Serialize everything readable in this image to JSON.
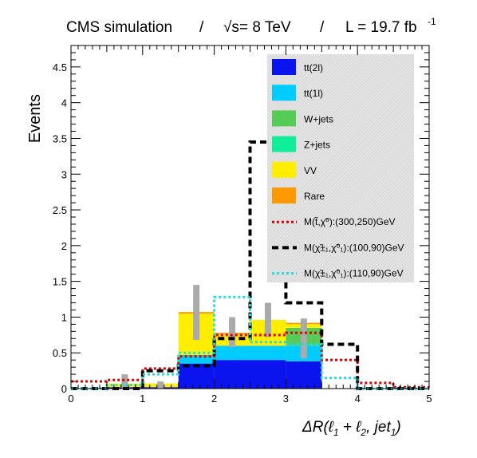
{
  "header": {
    "experiment": "CMS simulation",
    "sep1": "/",
    "energy_sqrt": "√s",
    "energy_rest": " = 8 TeV",
    "sep2": "/",
    "lumi": "L = 19.7 fb",
    "lumi_exp": "-1"
  },
  "chart_data": {
    "type": "histogram",
    "ylabel": "Events",
    "xlabel_parts": {
      "delta": "ΔR(ℓ",
      "sub1": "1",
      "plus": " + ℓ",
      "sub2": "2",
      "comma": ", jet",
      "sub3": "1",
      "close": ")"
    },
    "xlim": [
      0,
      5
    ],
    "ylim": [
      0,
      4.8
    ],
    "x_ticks": [
      0,
      1,
      2,
      3,
      4,
      5
    ],
    "x_tick_labels": [
      "0",
      "1",
      "2",
      "3",
      "4",
      "5"
    ],
    "y_ticks": [
      0,
      0.5,
      1,
      1.5,
      2,
      2.5,
      3,
      3.5,
      4,
      4.5
    ],
    "y_tick_labels": [
      "0",
      "0.5",
      "1",
      "1.5",
      "2",
      "2.5",
      "3",
      "3.5",
      "4",
      "4.5"
    ],
    "bin_edges": [
      0,
      0.5,
      1,
      1.5,
      2,
      2.5,
      3,
      3.5,
      4,
      4.5,
      5
    ],
    "stacked_series": [
      {
        "name": "tt(2l)",
        "color": "#0a14ee",
        "values": [
          0,
          0.02,
          0.02,
          0.35,
          0.4,
          0.4,
          0.38,
          0,
          0,
          0
        ]
      },
      {
        "name": "tt(1l)",
        "color": "#00ccff",
        "values": [
          0,
          0,
          0,
          0.12,
          0.2,
          0.2,
          0.22,
          0,
          0,
          0
        ]
      },
      {
        "name": "W+jets",
        "color": "#55cc55",
        "values": [
          0,
          0,
          0,
          0,
          0,
          0,
          0.25,
          0,
          0,
          0
        ]
      },
      {
        "name": "Z+jets",
        "color": "#11ee99",
        "values": [
          0,
          0,
          0,
          0,
          0,
          0,
          0,
          0,
          0,
          0
        ]
      },
      {
        "name": "VV",
        "color": "#ffee00",
        "values": [
          0,
          0.05,
          0.05,
          0.58,
          0.16,
          0.36,
          0.05,
          0,
          0,
          0
        ]
      },
      {
        "name": "Rare",
        "color": "#ff9900",
        "values": [
          0,
          0,
          0,
          0.02,
          0.02,
          0,
          0.02,
          0,
          0,
          0
        ]
      }
    ],
    "error_bars": [
      {
        "x": 0.75,
        "low": 0.0,
        "high": 0.2
      },
      {
        "x": 1.25,
        "low": 0.0,
        "high": 0.1
      },
      {
        "x": 1.75,
        "low": 0.68,
        "high": 1.45
      },
      {
        "x": 2.25,
        "low": 0.58,
        "high": 1.0
      },
      {
        "x": 2.75,
        "low": 0.72,
        "high": 1.2
      },
      {
        "x": 3.25,
        "low": 0.42,
        "high": 0.98
      }
    ],
    "signal_series": [
      {
        "name": "M(t̃,χ̃⁰):(300,250)GeV",
        "color": "#dd0000",
        "style": "dotted",
        "values": [
          0.1,
          0.12,
          0.28,
          0.45,
          0.75,
          0.75,
          0.78,
          0.4,
          0.08,
          0.02
        ]
      },
      {
        "name": "M(χ̃±₁,χ̃⁰₁):(100,90)GeV",
        "color": "#000000",
        "style": "dashed",
        "values": [
          0,
          0,
          0.25,
          0.32,
          0.7,
          3.45,
          1.2,
          0.62,
          0,
          0
        ]
      },
      {
        "name": "M(χ̃±₁,χ̃⁰₁):(110,90)GeV",
        "color": "#22dddd",
        "style": "dotted",
        "values": [
          0,
          0.05,
          0.2,
          0.5,
          1.28,
          0.65,
          0.62,
          0.15,
          0,
          0
        ]
      }
    ],
    "legend": {
      "placement": "top-right",
      "entries": [
        {
          "label": "tt(2l)",
          "kind": "fill",
          "color": "#0a14ee"
        },
        {
          "label": "tt(1l)",
          "kind": "fill",
          "color": "#00ccff"
        },
        {
          "label": "W+jets",
          "kind": "fill",
          "color": "#55cc55"
        },
        {
          "label": "Z+jets",
          "kind": "fill",
          "color": "#11ee99"
        },
        {
          "label": "VV",
          "kind": "fill",
          "color": "#ffee00"
        },
        {
          "label": "Rare",
          "kind": "fill",
          "color": "#ff9900"
        },
        {
          "label_parts": [
            "M(",
            "t̃",
            ",",
            "χ̃",
            "⁰",
            "):(300,250)GeV"
          ],
          "kind": "line",
          "color": "#dd0000",
          "style": "dotted"
        },
        {
          "label_parts": [
            "M(",
            "χ̃",
            "±₁",
            ",",
            "χ̃",
            "⁰₁",
            "):(100,90)GeV"
          ],
          "kind": "line",
          "color": "#000000",
          "style": "dashed"
        },
        {
          "label_parts": [
            "M(",
            "χ̃",
            "±₁",
            ",",
            "χ̃",
            "⁰₁",
            "):(110,90)GeV"
          ],
          "kind": "line",
          "color": "#22dddd",
          "style": "dotted"
        }
      ]
    }
  }
}
